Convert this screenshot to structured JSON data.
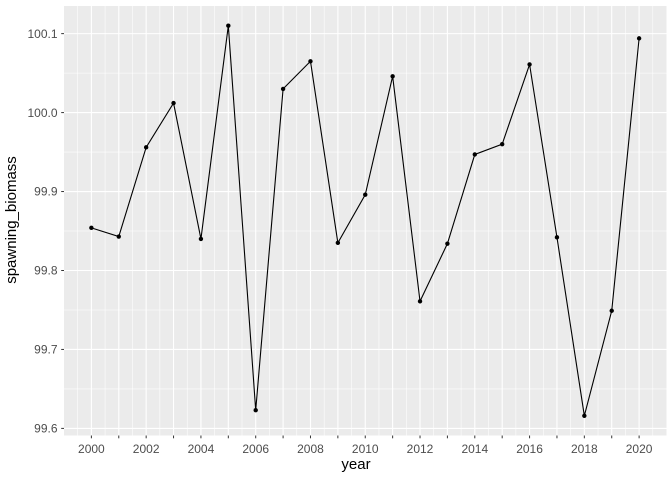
{
  "chart_data": {
    "type": "line",
    "title": "",
    "xlabel": "year",
    "ylabel": "spawning_biomass",
    "x": [
      2000,
      2001,
      2002,
      2003,
      2004,
      2005,
      2006,
      2007,
      2008,
      2009,
      2010,
      2011,
      2012,
      2013,
      2014,
      2015,
      2016,
      2017,
      2018,
      2019,
      2020
    ],
    "y": [
      99.854,
      99.843,
      99.956,
      100.012,
      99.84,
      100.11,
      99.623,
      100.03,
      100.065,
      99.835,
      99.896,
      100.046,
      99.761,
      99.834,
      99.947,
      99.96,
      100.061,
      99.842,
      99.616,
      99.749,
      100.094
    ],
    "x_tick_years": [
      2000,
      2001,
      2002,
      2003,
      2004,
      2005,
      2006,
      2007,
      2008,
      2009,
      2010,
      2011,
      2012,
      2013,
      2014,
      2015,
      2016,
      2017,
      2018,
      2019,
      2020
    ],
    "x_labeled_ticks": [
      {
        "year": 2000,
        "label": "2000"
      },
      {
        "year": 2002,
        "label": "2002"
      },
      {
        "year": 2004,
        "label": "2004"
      },
      {
        "year": 2006,
        "label": "2006"
      },
      {
        "year": 2008,
        "label": "2008"
      },
      {
        "year": 2010,
        "label": "2010"
      },
      {
        "year": 2012,
        "label": "2012"
      },
      {
        "year": 2014,
        "label": "2014"
      },
      {
        "year": 2016,
        "label": "2016"
      },
      {
        "year": 2018,
        "label": "2018"
      },
      {
        "year": 2020,
        "label": "2020"
      }
    ],
    "y_ticks": [
      {
        "value": 99.6,
        "label": "99.6"
      },
      {
        "value": 99.7,
        "label": "99.7"
      },
      {
        "value": 99.8,
        "label": "99.8"
      },
      {
        "value": 99.9,
        "label": "99.9"
      },
      {
        "value": 100.0,
        "label": "100.0"
      },
      {
        "value": 100.1,
        "label": "100.1"
      }
    ],
    "x_range": [
      1999,
      2021
    ],
    "y_range": [
      99.591,
      100.135
    ],
    "grid": true,
    "legend": false,
    "colors": {
      "panel_background": "#EBEBEB",
      "grid": "#FFFFFF",
      "line": "#000000",
      "point": "#000000",
      "axis_text": "#4D4D4D",
      "axis_title": "#000000",
      "tick_mark": "#333333"
    }
  }
}
